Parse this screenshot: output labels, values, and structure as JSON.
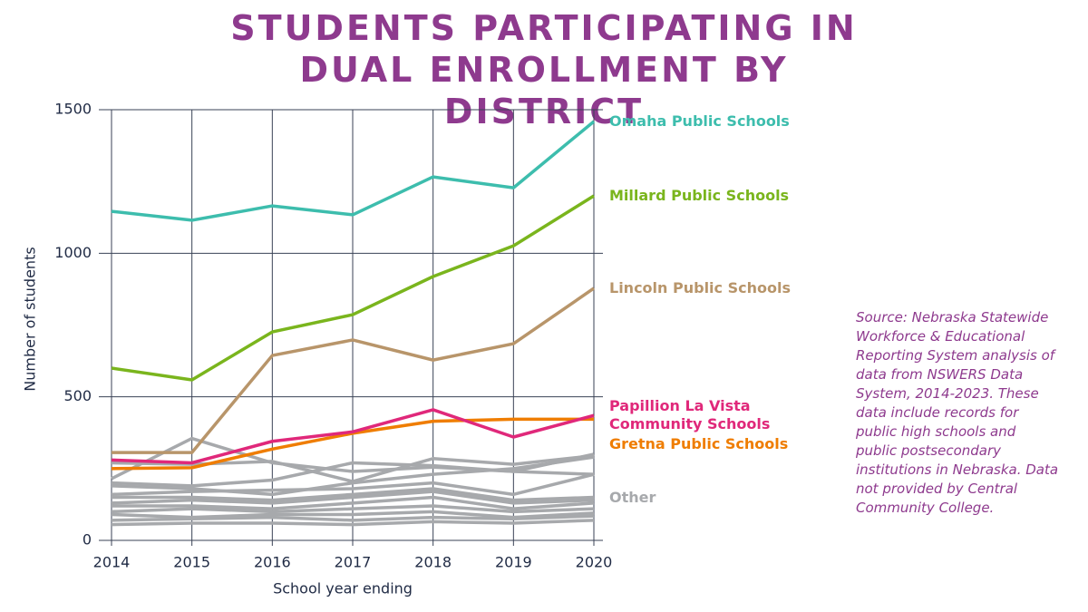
{
  "chart_data": {
    "type": "line",
    "title": "STUDENTS PARTICIPATING IN DUAL ENROLLMENT BY DISTRICT",
    "x_label": "School year ending",
    "y_label": "Number of students",
    "source": "Source: Nebraska Statewide Workforce & Educational Reporting System analysis of data from NSWERS Data System, 2014-2023. These data include records for public high schools and public postsecondary institutions in Nebraska. Data not provided by Central Community College.",
    "categories": [
      "2014",
      "2015",
      "2016",
      "2017",
      "2018",
      "2019",
      "2020"
    ],
    "ylim": [
      0,
      1500
    ],
    "yticks": [
      0,
      500,
      1000,
      1500
    ],
    "grid": true,
    "series": [
      {
        "color": "#a7a9ac",
        "values": [
          215,
          355,
          270,
          240,
          255,
          240,
          300
        ]
      },
      {
        "color": "#a7a9ac",
        "values": [
          270,
          265,
          275,
          205,
          285,
          265,
          295
        ]
      },
      {
        "color": "#a7a9ac",
        "values": [
          200,
          190,
          210,
          270,
          260,
          240,
          230
        ]
      },
      {
        "color": "#a7a9ac",
        "values": [
          190,
          180,
          160,
          200,
          230,
          250,
          290
        ]
      },
      {
        "color": "#a7a9ac",
        "values": [
          160,
          170,
          175,
          180,
          200,
          160,
          230
        ]
      },
      {
        "name": "Other",
        "color": "#a7a9ac",
        "values": [
          150,
          150,
          140,
          160,
          180,
          140,
          150
        ]
      },
      {
        "color": "#a7a9ac",
        "values": [
          130,
          140,
          130,
          150,
          170,
          130,
          140
        ]
      },
      {
        "color": "#a7a9ac",
        "values": [
          120,
          120,
          110,
          130,
          150,
          110,
          130
        ]
      },
      {
        "color": "#a7a9ac",
        "values": [
          100,
          110,
          100,
          110,
          120,
          100,
          110
        ]
      },
      {
        "color": "#a7a9ac",
        "values": [
          90,
          80,
          90,
          90,
          100,
          80,
          95
        ]
      },
      {
        "color": "#a7a9ac",
        "values": [
          70,
          75,
          80,
          70,
          80,
          75,
          85
        ]
      },
      {
        "color": "#a7a9ac",
        "values": [
          55,
          60,
          60,
          55,
          65,
          60,
          70
        ]
      },
      {
        "name": "Gretna Public Schools",
        "color": "#ef7d00",
        "values": [
          250,
          253,
          318,
          373,
          415,
          422,
          422
        ]
      },
      {
        "name": "Papillion La Vista Community Schools",
        "color": "#e0287a",
        "values": [
          280,
          270,
          345,
          378,
          455,
          360,
          435
        ]
      },
      {
        "name": "Lincoln Public Schools",
        "color": "#b8956a",
        "values": [
          306,
          306,
          644,
          698,
          628,
          685,
          878
        ]
      },
      {
        "name": "Millard Public Schools",
        "color": "#7ab51d",
        "values": [
          600,
          559,
          726,
          786,
          919,
          1026,
          1200
        ]
      },
      {
        "name": "Omaha Public Schools",
        "color": "#3dbdad",
        "values": [
          1146,
          1115,
          1165,
          1134,
          1266,
          1228,
          1459
        ]
      }
    ]
  }
}
